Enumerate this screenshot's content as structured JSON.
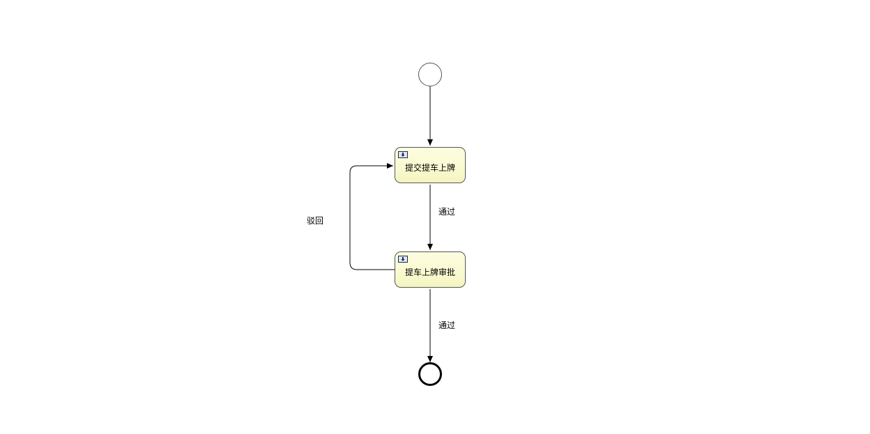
{
  "diagram": {
    "start_event": {},
    "end_event": {},
    "tasks": [
      {
        "label": "提交提车上牌"
      },
      {
        "label": "提车上牌审批"
      }
    ],
    "flows": [
      {
        "label": ""
      },
      {
        "label": "通过"
      },
      {
        "label": "通过"
      },
      {
        "label": "驳回"
      }
    ],
    "colors": {
      "line": "#000000",
      "task_fill": "#fafad2",
      "task_border": "#555555",
      "event_border": "#333333",
      "icon_fill": "#dde8f6"
    }
  }
}
